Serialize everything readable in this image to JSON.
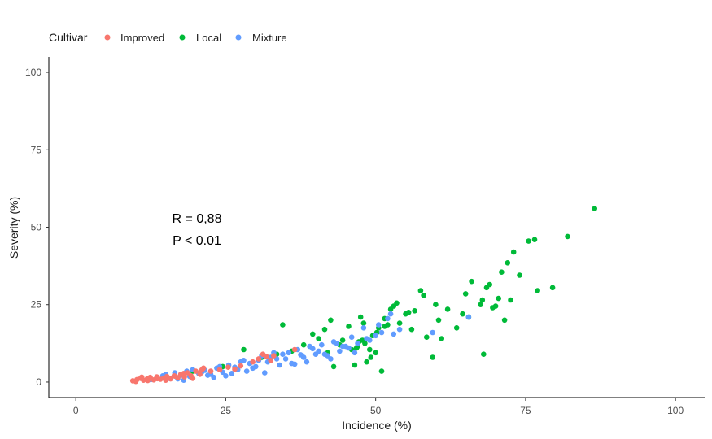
{
  "chart_data": {
    "type": "scatter",
    "xlabel": "Incidence (%)",
    "ylabel": "Severity (%)",
    "xlim": [
      -4.5,
      105
    ],
    "ylim": [
      -5,
      105
    ],
    "xticks": [
      "0",
      "25",
      "50",
      "75",
      "100"
    ],
    "yticks": [
      "0",
      "25",
      "50",
      "75",
      "100"
    ],
    "legend": {
      "title": "Cultivar",
      "placement": "top-left"
    },
    "grid": false,
    "annotations": [
      "R = 0,88",
      "P < 0.01"
    ],
    "series": [
      {
        "name": "Improved",
        "color": "#F8766D",
        "x": [
          9.5,
          10.2,
          10.8,
          11.3,
          11.9,
          12.4,
          13.0,
          13.6,
          14.1,
          14.7,
          15.2,
          15.8,
          16.4,
          17.0,
          17.5,
          18.1,
          18.6,
          19.2,
          20.0,
          20.7,
          21.3,
          22.5,
          24.0,
          25.4,
          26.5,
          27.5,
          29.5,
          30.5,
          31.2,
          31.8,
          32.5,
          33.0,
          36.5,
          10.0,
          11.0,
          12.0,
          13.5,
          15.0,
          16.5,
          18.0,
          19.5,
          21.0
        ],
        "y": [
          0.4,
          0.8,
          1.2,
          0.6,
          1.0,
          1.5,
          0.7,
          1.1,
          0.9,
          1.3,
          1.8,
          1.0,
          2.0,
          1.4,
          2.5,
          1.7,
          3.0,
          2.0,
          3.5,
          2.5,
          4.5,
          3.5,
          4.0,
          4.8,
          4.2,
          5.2,
          6.5,
          7.5,
          9.0,
          8.2,
          7.0,
          8.5,
          10.5,
          0.2,
          1.6,
          0.5,
          1.7,
          0.6,
          1.9,
          2.8,
          1.2,
          3.9
        ]
      },
      {
        "name": "Local",
        "color": "#00BA38",
        "x": [
          19.5,
          24.5,
          28.0,
          31.0,
          33.5,
          34.5,
          36.0,
          38.0,
          39.5,
          40.5,
          41.5,
          42.5,
          43.0,
          44.5,
          45.5,
          46.5,
          47.0,
          47.5,
          48.0,
          48.5,
          49.0,
          49.5,
          50.0,
          50.5,
          51.0,
          51.5,
          52.0,
          52.5,
          53.0,
          54.0,
          55.0,
          56.0,
          56.5,
          57.5,
          58.0,
          59.5,
          60.5,
          61.0,
          62.0,
          63.5,
          64.5,
          65.0,
          66.0,
          67.5,
          68.0,
          68.5,
          69.0,
          70.0,
          71.0,
          72.0,
          72.5,
          73.0,
          74.0,
          75.5,
          76.5,
          77.0,
          79.5,
          82.0,
          86.5,
          42.0,
          44.0,
          46.0,
          47.2,
          48.2,
          49.2,
          50.2,
          51.5,
          53.5,
          55.5,
          58.5,
          60.0,
          65.5,
          67.8,
          70.5,
          71.5,
          69.5,
          46.8,
          47.8
        ],
        "y": [
          3.5,
          5.0,
          10.5,
          8.0,
          9.0,
          18.5,
          10.0,
          12.0,
          15.5,
          14.0,
          17.0,
          20.0,
          5.0,
          13.5,
          18.0,
          5.5,
          11.5,
          21.0,
          19.0,
          6.5,
          10.5,
          15.0,
          9.5,
          17.5,
          3.5,
          20.5,
          18.5,
          23.5,
          24.5,
          19.0,
          22.0,
          17.0,
          23.0,
          29.5,
          28.0,
          8.0,
          20.0,
          14.0,
          23.5,
          17.5,
          22.0,
          28.5,
          32.5,
          25.0,
          9.0,
          30.5,
          31.5,
          24.5,
          35.5,
          38.5,
          26.5,
          42.0,
          34.5,
          45.5,
          46.0,
          29.5,
          30.5,
          47.0,
          56.0,
          9.5,
          12.0,
          10.5,
          13.0,
          12.5,
          8.0,
          16.0,
          18.0,
          25.5,
          22.5,
          14.5,
          25.0,
          21.0,
          26.5,
          27.0,
          20.0,
          24.0,
          11.0,
          13.5
        ]
      },
      {
        "name": "Mixture",
        "color": "#619CFF",
        "x": [
          12.5,
          13.5,
          14.5,
          15.5,
          16.5,
          17.5,
          18.5,
          19.0,
          20.5,
          21.5,
          22.5,
          23.5,
          24.5,
          25.5,
          26.0,
          27.0,
          28.0,
          29.0,
          30.0,
          31.0,
          32.0,
          33.0,
          34.0,
          35.0,
          36.0,
          37.0,
          38.0,
          39.0,
          40.0,
          41.0,
          42.0,
          43.0,
          44.0,
          45.0,
          46.0,
          47.0,
          48.0,
          49.0,
          50.0,
          51.0,
          52.0,
          53.0,
          54.0,
          59.5,
          65.5,
          17.0,
          19.5,
          22.0,
          24.0,
          26.5,
          28.5,
          30.5,
          32.5,
          34.5,
          36.5,
          38.5,
          40.5,
          42.5,
          44.5,
          46.5,
          48.5,
          50.5,
          52.5,
          15.0,
          18.0,
          21.0,
          23.0,
          25.0,
          27.5,
          29.5,
          31.5,
          33.5,
          35.5,
          37.5,
          39.5,
          41.5,
          43.5,
          45.5
        ],
        "y": [
          0.8,
          1.5,
          2.0,
          1.2,
          3.0,
          2.2,
          3.5,
          1.8,
          2.8,
          3.8,
          2.5,
          4.5,
          3.2,
          5.5,
          2.8,
          4.0,
          7.0,
          6.0,
          5.0,
          8.5,
          6.5,
          9.5,
          5.5,
          7.5,
          6.0,
          10.5,
          8.0,
          11.5,
          9.0,
          12.0,
          8.5,
          13.0,
          10.0,
          11.5,
          14.5,
          12.5,
          17.5,
          13.5,
          15.0,
          16.0,
          20.5,
          15.5,
          17.0,
          16.0,
          21.0,
          1.0,
          4.0,
          2.2,
          5.0,
          4.8,
          3.5,
          7.0,
          8.0,
          9.0,
          5.8,
          6.5,
          10.0,
          7.5,
          11.5,
          9.5,
          14.0,
          18.5,
          22.0,
          2.5,
          0.6,
          3.2,
          1.5,
          2.0,
          6.5,
          4.5,
          3.0,
          7.5,
          9.5,
          8.8,
          10.8,
          9.0,
          12.5,
          11.0
        ]
      }
    ]
  }
}
